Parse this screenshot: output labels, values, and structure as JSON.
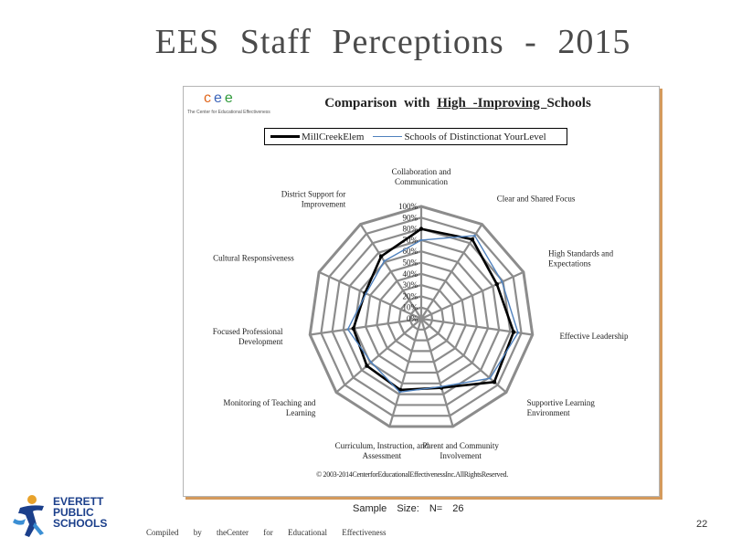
{
  "slide": {
    "title": "EES  Staff Perceptions  -  2015",
    "sample_size": "Sample   Size:   N=  26",
    "compiled_by": "Compiled   by  theCenter   for  Educational   Effectiveness",
    "page_number": "22"
  },
  "logos": {
    "cee_letters": [
      "c",
      "e",
      "e"
    ],
    "cee_colors": [
      "#e0661b",
      "#3a63b8",
      "#2f9a3a"
    ],
    "cee_tagline": "The Center for Educational Effectiveness",
    "eps_lines": [
      "EVERETT",
      "PUBLIC",
      "SCHOOLS"
    ]
  },
  "chart_data": {
    "type": "radar",
    "title_prefix": "Comparison   with  ",
    "title_underlined": "High -Improving ",
    "title_suffix": "Schools",
    "categories": [
      "Collaboration and Communication",
      "Clear and Shared Focus",
      "High Standards and Expectations",
      "Effective Leadership",
      "Supportive Learning Environment",
      "Parent and Community Involvement",
      "Curriculum, Instruction, and Assessment",
      "Monitoring of Teaching and Learning",
      "Focused Professional Development",
      "Cultural Responsiveness",
      "District Support for Improvement"
    ],
    "category_label_lines": [
      [
        "Collaboration and",
        "Communication"
      ],
      [
        "Clear and  Shared  Focus"
      ],
      [
        "High Standards  and",
        "Expectations"
      ],
      [
        "Effective  Leadership"
      ],
      [
        "Supportive  Learning",
        "Environment"
      ],
      [
        "Parent  and  Community",
        "Involvement"
      ],
      [
        "Curriculum, Instruction,  and",
        "Assessment"
      ],
      [
        "Monitoring of Teaching and",
        "Learning"
      ],
      [
        "Focused Professional",
        "Development"
      ],
      [
        "Cultural Responsiveness"
      ],
      [
        "District Support  for",
        "Improvement"
      ]
    ],
    "rlim": [
      0,
      100
    ],
    "ticks": [
      "0%",
      "10%",
      "20%",
      "30%",
      "40%",
      "50%",
      "60%",
      "70%",
      "80%",
      "90%",
      "100%"
    ],
    "series": [
      {
        "name": "MillCreekElem",
        "color": "#000000",
        "values": [
          80,
          84,
          74,
          83,
          86,
          64,
          66,
          64,
          61,
          55,
          66
        ]
      },
      {
        "name": "Schools of Distinctionat  YourLevel",
        "color": "#4f81bd",
        "values": [
          70,
          88,
          79,
          87,
          81,
          63,
          68,
          59,
          66,
          54,
          61
        ]
      }
    ],
    "legend_position": "top",
    "copyright": "© 2003-2014CenterforEducationalEffectivenessInc.AllRightsReserved."
  }
}
